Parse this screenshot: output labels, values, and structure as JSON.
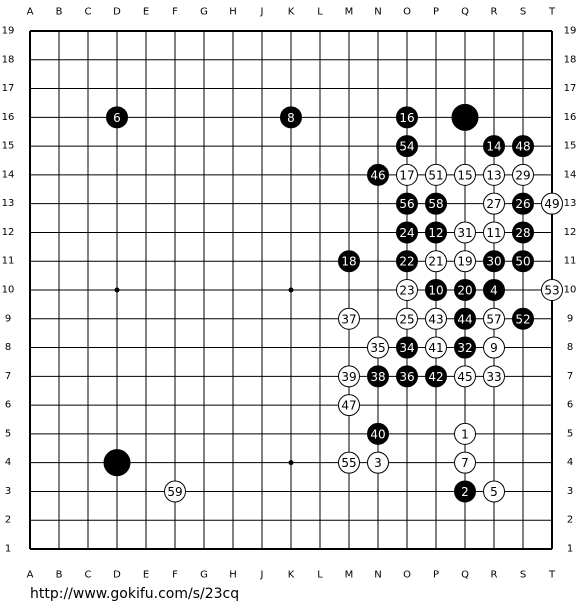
{
  "columns": [
    "A",
    "B",
    "C",
    "D",
    "E",
    "F",
    "G",
    "H",
    "J",
    "K",
    "L",
    "M",
    "N",
    "O",
    "P",
    "Q",
    "R",
    "S",
    "T"
  ],
  "rows": [
    19,
    18,
    17,
    16,
    15,
    14,
    13,
    12,
    11,
    10,
    9,
    8,
    7,
    6,
    5,
    4,
    3,
    2,
    1
  ],
  "stones": [
    {
      "point": "D16",
      "color": "black",
      "label": 6
    },
    {
      "point": "K16",
      "color": "black",
      "label": 8
    },
    {
      "point": "O16",
      "color": "black",
      "label": 16
    },
    {
      "point": "Q16",
      "color": "black"
    },
    {
      "point": "O15",
      "color": "black",
      "label": 54
    },
    {
      "point": "R15",
      "color": "black",
      "label": 14
    },
    {
      "point": "S15",
      "color": "black",
      "label": 48
    },
    {
      "point": "N14",
      "color": "black",
      "label": 46
    },
    {
      "point": "O14",
      "color": "white",
      "label": 17
    },
    {
      "point": "P14",
      "color": "white",
      "label": 51
    },
    {
      "point": "Q14",
      "color": "white",
      "label": 15
    },
    {
      "point": "R14",
      "color": "white",
      "label": 13
    },
    {
      "point": "S14",
      "color": "white",
      "label": 29
    },
    {
      "point": "O13",
      "color": "black",
      "label": 56
    },
    {
      "point": "P13",
      "color": "black",
      "label": 58
    },
    {
      "point": "R13",
      "color": "white",
      "label": 27
    },
    {
      "point": "S13",
      "color": "black",
      "label": 26
    },
    {
      "point": "T13",
      "color": "white",
      "label": 49
    },
    {
      "point": "O12",
      "color": "black",
      "label": 24
    },
    {
      "point": "P12",
      "color": "black",
      "label": 12
    },
    {
      "point": "Q12",
      "color": "white",
      "label": 31
    },
    {
      "point": "R12",
      "color": "white",
      "label": 11
    },
    {
      "point": "S12",
      "color": "black",
      "label": 28
    },
    {
      "point": "M11",
      "color": "black",
      "label": 18
    },
    {
      "point": "O11",
      "color": "black",
      "label": 22
    },
    {
      "point": "P11",
      "color": "white",
      "label": 21
    },
    {
      "point": "Q11",
      "color": "white",
      "label": 19
    },
    {
      "point": "R11",
      "color": "black",
      "label": 30
    },
    {
      "point": "S11",
      "color": "black",
      "label": 50
    },
    {
      "point": "O10",
      "color": "white",
      "label": 23
    },
    {
      "point": "P10",
      "color": "black",
      "label": 10
    },
    {
      "point": "Q10",
      "color": "black",
      "label": 20
    },
    {
      "point": "R10",
      "color": "black",
      "label": 4
    },
    {
      "point": "T10",
      "color": "white",
      "label": 53
    },
    {
      "point": "M9",
      "color": "white",
      "label": 37
    },
    {
      "point": "O9",
      "color": "white",
      "label": 25
    },
    {
      "point": "P9",
      "color": "white",
      "label": 43
    },
    {
      "point": "Q9",
      "color": "black",
      "label": 44
    },
    {
      "point": "R9",
      "color": "white",
      "label": 57
    },
    {
      "point": "S9",
      "color": "black",
      "label": 52
    },
    {
      "point": "N8",
      "color": "white",
      "label": 35
    },
    {
      "point": "O8",
      "color": "black",
      "label": 34
    },
    {
      "point": "P8",
      "color": "white",
      "label": 41
    },
    {
      "point": "Q8",
      "color": "black",
      "label": 32
    },
    {
      "point": "R8",
      "color": "white",
      "label": 9
    },
    {
      "point": "M7",
      "color": "white",
      "label": 39
    },
    {
      "point": "N7",
      "color": "black",
      "label": 38
    },
    {
      "point": "O7",
      "color": "black",
      "label": 36
    },
    {
      "point": "P7",
      "color": "black",
      "label": 42
    },
    {
      "point": "Q7",
      "color": "white",
      "label": 45
    },
    {
      "point": "R7",
      "color": "white",
      "label": 33
    },
    {
      "point": "M6",
      "color": "white",
      "label": 47
    },
    {
      "point": "N5",
      "color": "black",
      "label": 40
    },
    {
      "point": "Q5",
      "color": "white",
      "label": 1
    },
    {
      "point": "D4",
      "color": "black"
    },
    {
      "point": "M4",
      "color": "white",
      "label": 55
    },
    {
      "point": "N4",
      "color": "white",
      "label": 3
    },
    {
      "point": "Q4",
      "color": "white",
      "label": 7
    },
    {
      "point": "F3",
      "color": "white",
      "label": 59
    },
    {
      "point": "Q3",
      "color": "black",
      "label": 2
    },
    {
      "point": "R3",
      "color": "white",
      "label": 5
    }
  ],
  "url": "http://www.gokifu.com/s/23cq"
}
